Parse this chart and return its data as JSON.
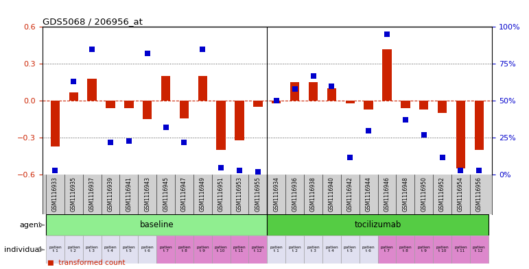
{
  "title": "GDS5068 / 206956_at",
  "xlabels": [
    "GSM1116933",
    "GSM1116935",
    "GSM1116937",
    "GSM1116939",
    "GSM1116941",
    "GSM1116943",
    "GSM1116945",
    "GSM1116947",
    "GSM1116949",
    "GSM1116951",
    "GSM1116953",
    "GSM1116955",
    "GSM1116934",
    "GSM1116936",
    "GSM1116938",
    "GSM1116940",
    "GSM1116942",
    "GSM1116944",
    "GSM1116946",
    "GSM1116948",
    "GSM1116950",
    "GSM1116952",
    "GSM1116954",
    "GSM1116956"
  ],
  "red_values": [
    -0.37,
    0.07,
    0.18,
    -0.06,
    -0.06,
    -0.15,
    0.2,
    -0.14,
    0.2,
    -0.4,
    -0.32,
    -0.05,
    -0.02,
    0.15,
    0.15,
    0.1,
    -0.02,
    -0.07,
    0.42,
    -0.06,
    -0.07,
    -0.1,
    -0.55,
    -0.4
  ],
  "blue_values_pct": [
    3,
    63,
    85,
    22,
    23,
    82,
    32,
    22,
    85,
    5,
    3,
    2,
    50,
    58,
    67,
    60,
    12,
    30,
    95,
    37,
    27,
    12,
    3,
    3
  ],
  "ylim_left": [
    -0.6,
    0.6
  ],
  "ylim_right": [
    0,
    100
  ],
  "left_yticks": [
    -0.6,
    -0.3,
    0.0,
    0.3,
    0.6
  ],
  "right_yticks": [
    0,
    25,
    50,
    75,
    100
  ],
  "right_yticklabels": [
    "0%",
    "25%",
    "50%",
    "75%",
    "100%"
  ],
  "group1_label": "baseline",
  "group2_label": "tocilizumab",
  "agent_label": "agent",
  "individual_label": "individual",
  "patient_labels_g1": [
    "patien\nt 1",
    "patien\nt 2",
    "patien\nt 3",
    "patien\nt 4",
    "patien\nt 5",
    "patien\nt 6",
    "patien\nt 7",
    "patien\nt 8",
    "patien\nt 9",
    "patien\nt 10",
    "patien\nt 11",
    "patien\nt 12"
  ],
  "patient_labels_g2": [
    "patien\nt 1",
    "patien\nt 2",
    "patien\nt 3",
    "patien\nt 4",
    "patien\nt 5",
    "patien\nt 6",
    "patien\nt 7",
    "patien\nt 8",
    "patien\nt 9",
    "patien\nt 10",
    "patien\nt 11",
    "patien\nt 12"
  ],
  "bar_color": "#CC2200",
  "dot_color": "#0000CC",
  "group1_color": "#90EE90",
  "group2_color": "#55CC44",
  "patient_bg_normal": "#E0E0F0",
  "patient_bg_highlight": "#DD88CC",
  "xticklabel_bg": "#D0D0D0",
  "zero_line_color": "#CC2200",
  "dotted_line_color": "#444444",
  "bar_width": 0.5,
  "dot_size": 28,
  "n_baseline": 12,
  "n_tocilizumab": 12,
  "highlight_indices": [
    6,
    7,
    8,
    9,
    10,
    11,
    18,
    19,
    20,
    21,
    22,
    23
  ]
}
